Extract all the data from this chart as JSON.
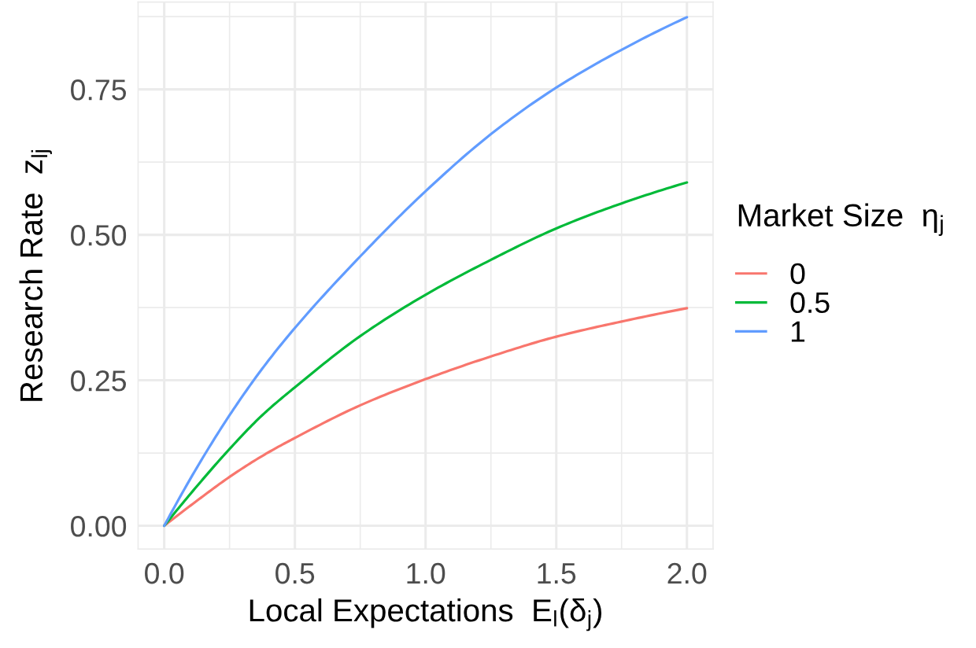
{
  "chart_data": {
    "type": "line",
    "xlabel": "Local Expectations  E$_{l}$(δ$_{j}$)",
    "ylabel": "Research Rate  z$_{lj}$",
    "legend_title": "Market Size  η$_{j}$",
    "x": [
      0,
      0.125,
      0.25,
      0.375,
      0.5,
      0.75,
      1,
      1.25,
      1.5,
      1.75,
      2
    ],
    "series": [
      {
        "name": "0",
        "color": "#f8766d",
        "values": [
          0,
          0.043,
          0.084,
          0.12,
          0.151,
          0.207,
          0.252,
          0.291,
          0.325,
          0.351,
          0.374
        ]
      },
      {
        "name": "0.5",
        "color": "#00ba38",
        "values": [
          0,
          0.068,
          0.132,
          0.19,
          0.238,
          0.326,
          0.397,
          0.457,
          0.511,
          0.554,
          0.59
        ]
      },
      {
        "name": "1",
        "color": "#619cff",
        "values": [
          0,
          0.1,
          0.19,
          0.27,
          0.34,
          0.463,
          0.575,
          0.673,
          0.753,
          0.818,
          0.874
        ]
      }
    ],
    "xlim": [
      -0.1,
      2.1
    ],
    "ylim": [
      -0.04,
      0.9
    ],
    "xticks": [
      {
        "value": 0,
        "label": "0.0"
      },
      {
        "value": 0.25,
        "label": null
      },
      {
        "value": 0.5,
        "label": "0.5"
      },
      {
        "value": 0.75,
        "label": null
      },
      {
        "value": 1,
        "label": "1.0"
      },
      {
        "value": 1.25,
        "label": null
      },
      {
        "value": 1.5,
        "label": "1.5"
      },
      {
        "value": 1.75,
        "label": null
      },
      {
        "value": 2,
        "label": "2.0"
      }
    ],
    "yticks": [
      {
        "value": 0,
        "label": "0.00"
      },
      {
        "value": 0.125,
        "label": null
      },
      {
        "value": 0.25,
        "label": "0.25"
      },
      {
        "value": 0.375,
        "label": null
      },
      {
        "value": 0.5,
        "label": "0.50"
      },
      {
        "value": 0.625,
        "label": null
      },
      {
        "value": 0.75,
        "label": "0.75"
      },
      {
        "value": 0.875,
        "label": null
      }
    ],
    "grid": true,
    "legend": "right",
    "line_style": "solid"
  }
}
